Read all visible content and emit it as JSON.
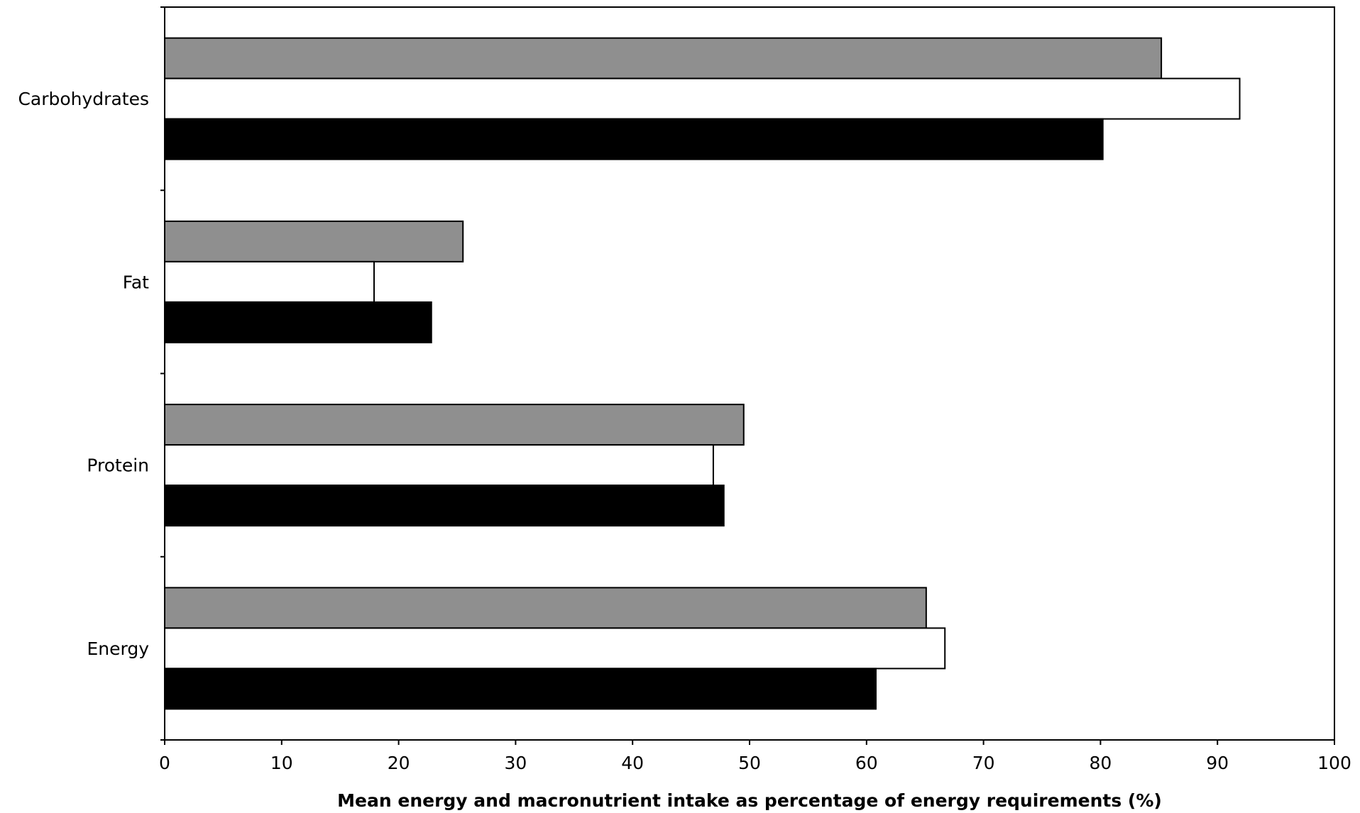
{
  "chart_data": {
    "type": "bar",
    "orientation": "horizontal",
    "title": "",
    "xlabel": "Mean energy and macronutrient intake as percentage of energy requirements (%)",
    "ylabel": "",
    "categories": [
      "Energy",
      "Protein",
      "Fat",
      "Carbohydrates"
    ],
    "series": [
      {
        "color": "#8f8f8f",
        "values": [
          65.1,
          49.5,
          25.5,
          85.2
        ]
      },
      {
        "color": "#ffffff",
        "values": [
          66.7,
          46.9,
          17.9,
          91.9
        ]
      },
      {
        "color": "#000000",
        "values": [
          60.8,
          47.8,
          22.8,
          80.2
        ]
      }
    ],
    "xlim": [
      0,
      100
    ],
    "xticks": [
      "0",
      "10",
      "20",
      "30",
      "40",
      "50",
      "60",
      "70",
      "80",
      "90",
      "100"
    ],
    "grid": false,
    "legend": "none"
  }
}
